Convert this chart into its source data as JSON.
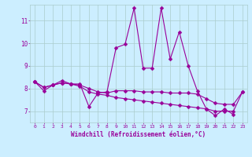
{
  "title": "",
  "xlabel": "Windchill (Refroidissement éolien,°C)",
  "bg_color": "#cceeff",
  "line_color": "#990099",
  "grid_color": "#aacccc",
  "xmin": -0.5,
  "xmax": 23.5,
  "ymin": 6.5,
  "ymax": 11.7,
  "yticks": [
    7,
    8,
    9,
    10,
    11
  ],
  "xticks": [
    0,
    1,
    2,
    3,
    4,
    5,
    6,
    7,
    8,
    9,
    10,
    11,
    12,
    13,
    14,
    15,
    16,
    17,
    18,
    19,
    20,
    21,
    22,
    23
  ],
  "series1": [
    8.3,
    7.9,
    8.15,
    8.35,
    8.2,
    8.2,
    7.2,
    7.8,
    7.85,
    9.8,
    9.95,
    11.55,
    8.9,
    8.9,
    11.55,
    9.3,
    10.5,
    9.0,
    7.9,
    7.1,
    6.8,
    7.1,
    6.85,
    null
  ],
  "series2": [
    8.3,
    8.05,
    8.15,
    8.25,
    8.2,
    8.15,
    8.0,
    7.85,
    7.8,
    7.9,
    7.9,
    7.9,
    7.85,
    7.85,
    7.85,
    7.8,
    7.8,
    7.8,
    7.75,
    7.55,
    7.35,
    7.3,
    7.3,
    7.85
  ],
  "series3": [
    8.3,
    8.05,
    8.15,
    8.25,
    8.2,
    8.1,
    7.85,
    7.75,
    7.7,
    7.6,
    7.55,
    7.5,
    7.45,
    7.4,
    7.35,
    7.3,
    7.25,
    7.2,
    7.15,
    7.1,
    7.0,
    7.0,
    7.0,
    7.85
  ],
  "markersize": 2.5,
  "lw": 0.8
}
